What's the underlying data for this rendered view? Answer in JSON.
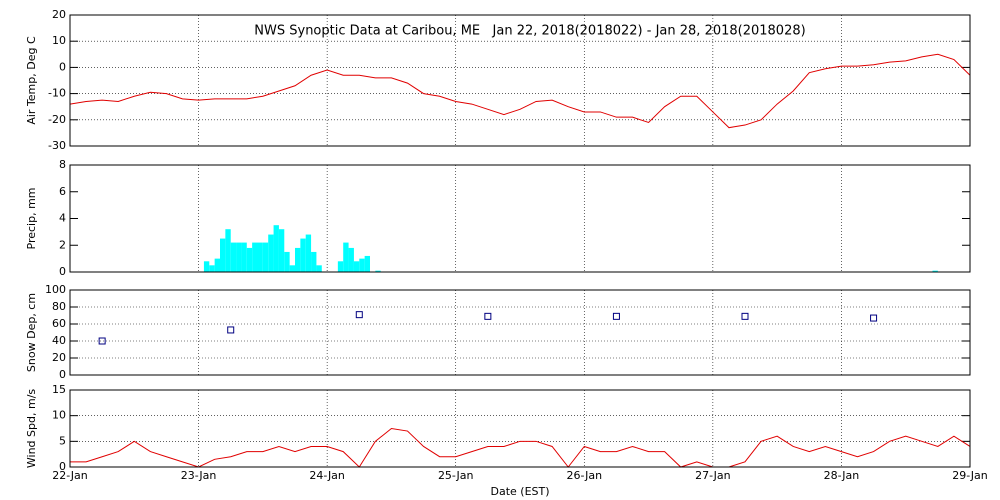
{
  "chart_data": [
    {
      "type": "line",
      "title": "NWS Synoptic Data at Caribou, ME   Jan 22, 2018(2018022) - Jan 28, 2018(2018028)",
      "y_label": "Air Temp, Deg C",
      "color": "#e00000",
      "grid": true,
      "xlim": [
        0,
        168
      ],
      "ylim": [
        -30,
        20
      ],
      "yticks": [
        -30,
        -20,
        -10,
        0,
        10,
        20
      ],
      "x": [
        0,
        3,
        6,
        9,
        12,
        15,
        18,
        21,
        24,
        27,
        30,
        33,
        36,
        39,
        42,
        45,
        48,
        51,
        54,
        57,
        60,
        63,
        66,
        69,
        72,
        75,
        78,
        81,
        84,
        87,
        90,
        93,
        96,
        99,
        102,
        105,
        108,
        111,
        114,
        117,
        120,
        123,
        126,
        129,
        132,
        135,
        138,
        141,
        144,
        147,
        150,
        153,
        156,
        159,
        162,
        165,
        168
      ],
      "values": [
        -14,
        -13,
        -12.5,
        -13,
        -11,
        -9.5,
        -10,
        -12,
        -12.5,
        -12,
        -12,
        -12,
        -11,
        -9,
        -7,
        -3,
        -1,
        -3,
        -3,
        -4,
        -4,
        -6,
        -10,
        -11,
        -13,
        -14,
        -16,
        -18,
        -16,
        -13,
        -12.5,
        -15,
        -17,
        -17,
        -19,
        -19,
        -21,
        -15,
        -11,
        -11,
        -17,
        -23,
        -22,
        -20,
        -14,
        -9,
        -2,
        -0.5,
        0.5,
        0.5,
        1,
        2,
        2.5,
        4,
        5,
        3,
        -3
      ]
    },
    {
      "type": "bar",
      "y_label": "Precip, mm",
      "color": "#00ffff",
      "grid": false,
      "xlim": [
        0,
        168
      ],
      "ylim": [
        0,
        8
      ],
      "yticks": [
        0,
        2,
        4,
        6,
        8
      ],
      "x": [
        25,
        26,
        27,
        28,
        29,
        30,
        31,
        32,
        33,
        34,
        35,
        36,
        37,
        38,
        39,
        40,
        41,
        42,
        43,
        44,
        45,
        46,
        50,
        51,
        52,
        53,
        54,
        55,
        57,
        161
      ],
      "values": [
        0.8,
        0.5,
        1,
        2.5,
        3.2,
        2.2,
        2.2,
        2.2,
        1.8,
        2.2,
        2.2,
        2.2,
        2.8,
        3.5,
        3.2,
        1.5,
        0.5,
        1.8,
        2.5,
        2.8,
        1.5,
        0.5,
        0.8,
        2.2,
        1.8,
        0.8,
        1,
        1.2,
        0.1,
        0.1
      ]
    },
    {
      "type": "scatter",
      "y_label": "Snow Dep, cm",
      "color": "#000080",
      "grid": true,
      "xlim": [
        0,
        168
      ],
      "ylim": [
        0,
        100
      ],
      "yticks": [
        0,
        20,
        40,
        60,
        80,
        100
      ],
      "x": [
        6,
        30,
        54,
        78,
        102,
        126,
        150
      ],
      "values": [
        40,
        53,
        71,
        69,
        69,
        69,
        67
      ]
    },
    {
      "type": "line",
      "y_label": "Wind Spd, m/s",
      "x_label": "Date (EST)",
      "color": "#e00000",
      "grid": true,
      "xlim": [
        0,
        168
      ],
      "ylim": [
        0,
        15
      ],
      "yticks": [
        0,
        5,
        10,
        15
      ],
      "xticks": [
        {
          "value": 0,
          "label": "22-Jan"
        },
        {
          "value": 24,
          "label": "23-Jan"
        },
        {
          "value": 48,
          "label": "24-Jan"
        },
        {
          "value": 72,
          "label": "25-Jan"
        },
        {
          "value": 96,
          "label": "26-Jan"
        },
        {
          "value": 120,
          "label": "27-Jan"
        },
        {
          "value": 144,
          "label": "28-Jan"
        },
        {
          "value": 168,
          "label": "29-Jan"
        }
      ],
      "x": [
        0,
        3,
        6,
        9,
        12,
        15,
        18,
        21,
        24,
        27,
        30,
        33,
        36,
        39,
        42,
        45,
        48,
        51,
        54,
        57,
        60,
        63,
        66,
        69,
        72,
        75,
        78,
        81,
        84,
        87,
        90,
        93,
        96,
        99,
        102,
        105,
        108,
        111,
        114,
        117,
        120,
        123,
        126,
        129,
        132,
        135,
        138,
        141,
        144,
        147,
        150,
        153,
        156,
        159,
        162,
        165,
        168
      ],
      "values": [
        1,
        1,
        2,
        3,
        5,
        3,
        2,
        1,
        0,
        1.5,
        2,
        3,
        3,
        4,
        3,
        4,
        4,
        3,
        0,
        5,
        7.5,
        7,
        4,
        2,
        2,
        3,
        4,
        4,
        5,
        5,
        4,
        0,
        4,
        3,
        3,
        4,
        3,
        3,
        0,
        1,
        0,
        0,
        1,
        5,
        6,
        4,
        3,
        4,
        3,
        2,
        3,
        5,
        6,
        5,
        4,
        6,
        4
      ]
    }
  ]
}
